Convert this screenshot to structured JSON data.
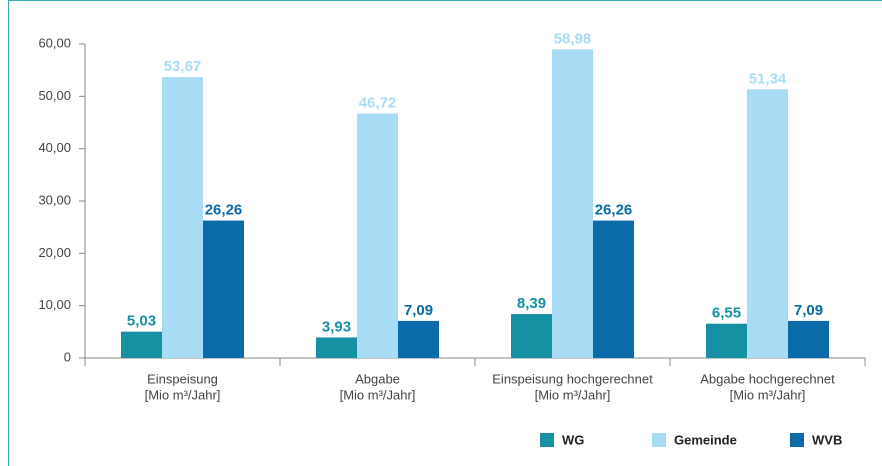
{
  "chart_data": {
    "type": "bar",
    "categories": [
      [
        "Einspeisung",
        "[Mio m³/Jahr]"
      ],
      [
        "Abgabe",
        "[Mio m³/Jahr]"
      ],
      [
        "Einspeisung hochgerechnet",
        "[Mio m³/Jahr]"
      ],
      [
        "Abgabe hochgerechnet",
        "[Mio m³/Jahr]"
      ]
    ],
    "series": [
      {
        "name": "WG",
        "color": "#1690a3",
        "values": [
          5.03,
          3.93,
          8.39,
          6.55
        ],
        "value_labels": [
          "5,03",
          "3,93",
          "8,39",
          "6,55"
        ]
      },
      {
        "name": "Gemeinde",
        "color": "#a8dcf5",
        "values": [
          53.67,
          46.72,
          58.98,
          51.34
        ],
        "value_labels": [
          "53,67",
          "46,72",
          "58,98",
          "51,34"
        ]
      },
      {
        "name": "WVB",
        "color": "#0b6aa8",
        "values": [
          26.26,
          7.09,
          26.26,
          7.09
        ],
        "value_labels": [
          "26,26",
          "7,09",
          "26,26",
          "7,09"
        ]
      }
    ],
    "ylim": [
      0,
      60
    ],
    "yticks": [
      0,
      {
        "value": 10,
        "label": "10,00"
      },
      {
        "value": 20,
        "label": "20,00"
      },
      {
        "value": 30,
        "label": "30,00"
      },
      {
        "value": 40,
        "label": "40,00"
      },
      {
        "value": 50,
        "label": "50,00"
      },
      {
        "value": 60,
        "label": "60,00"
      }
    ],
    "legend": "bottom-right",
    "grid": false
  }
}
